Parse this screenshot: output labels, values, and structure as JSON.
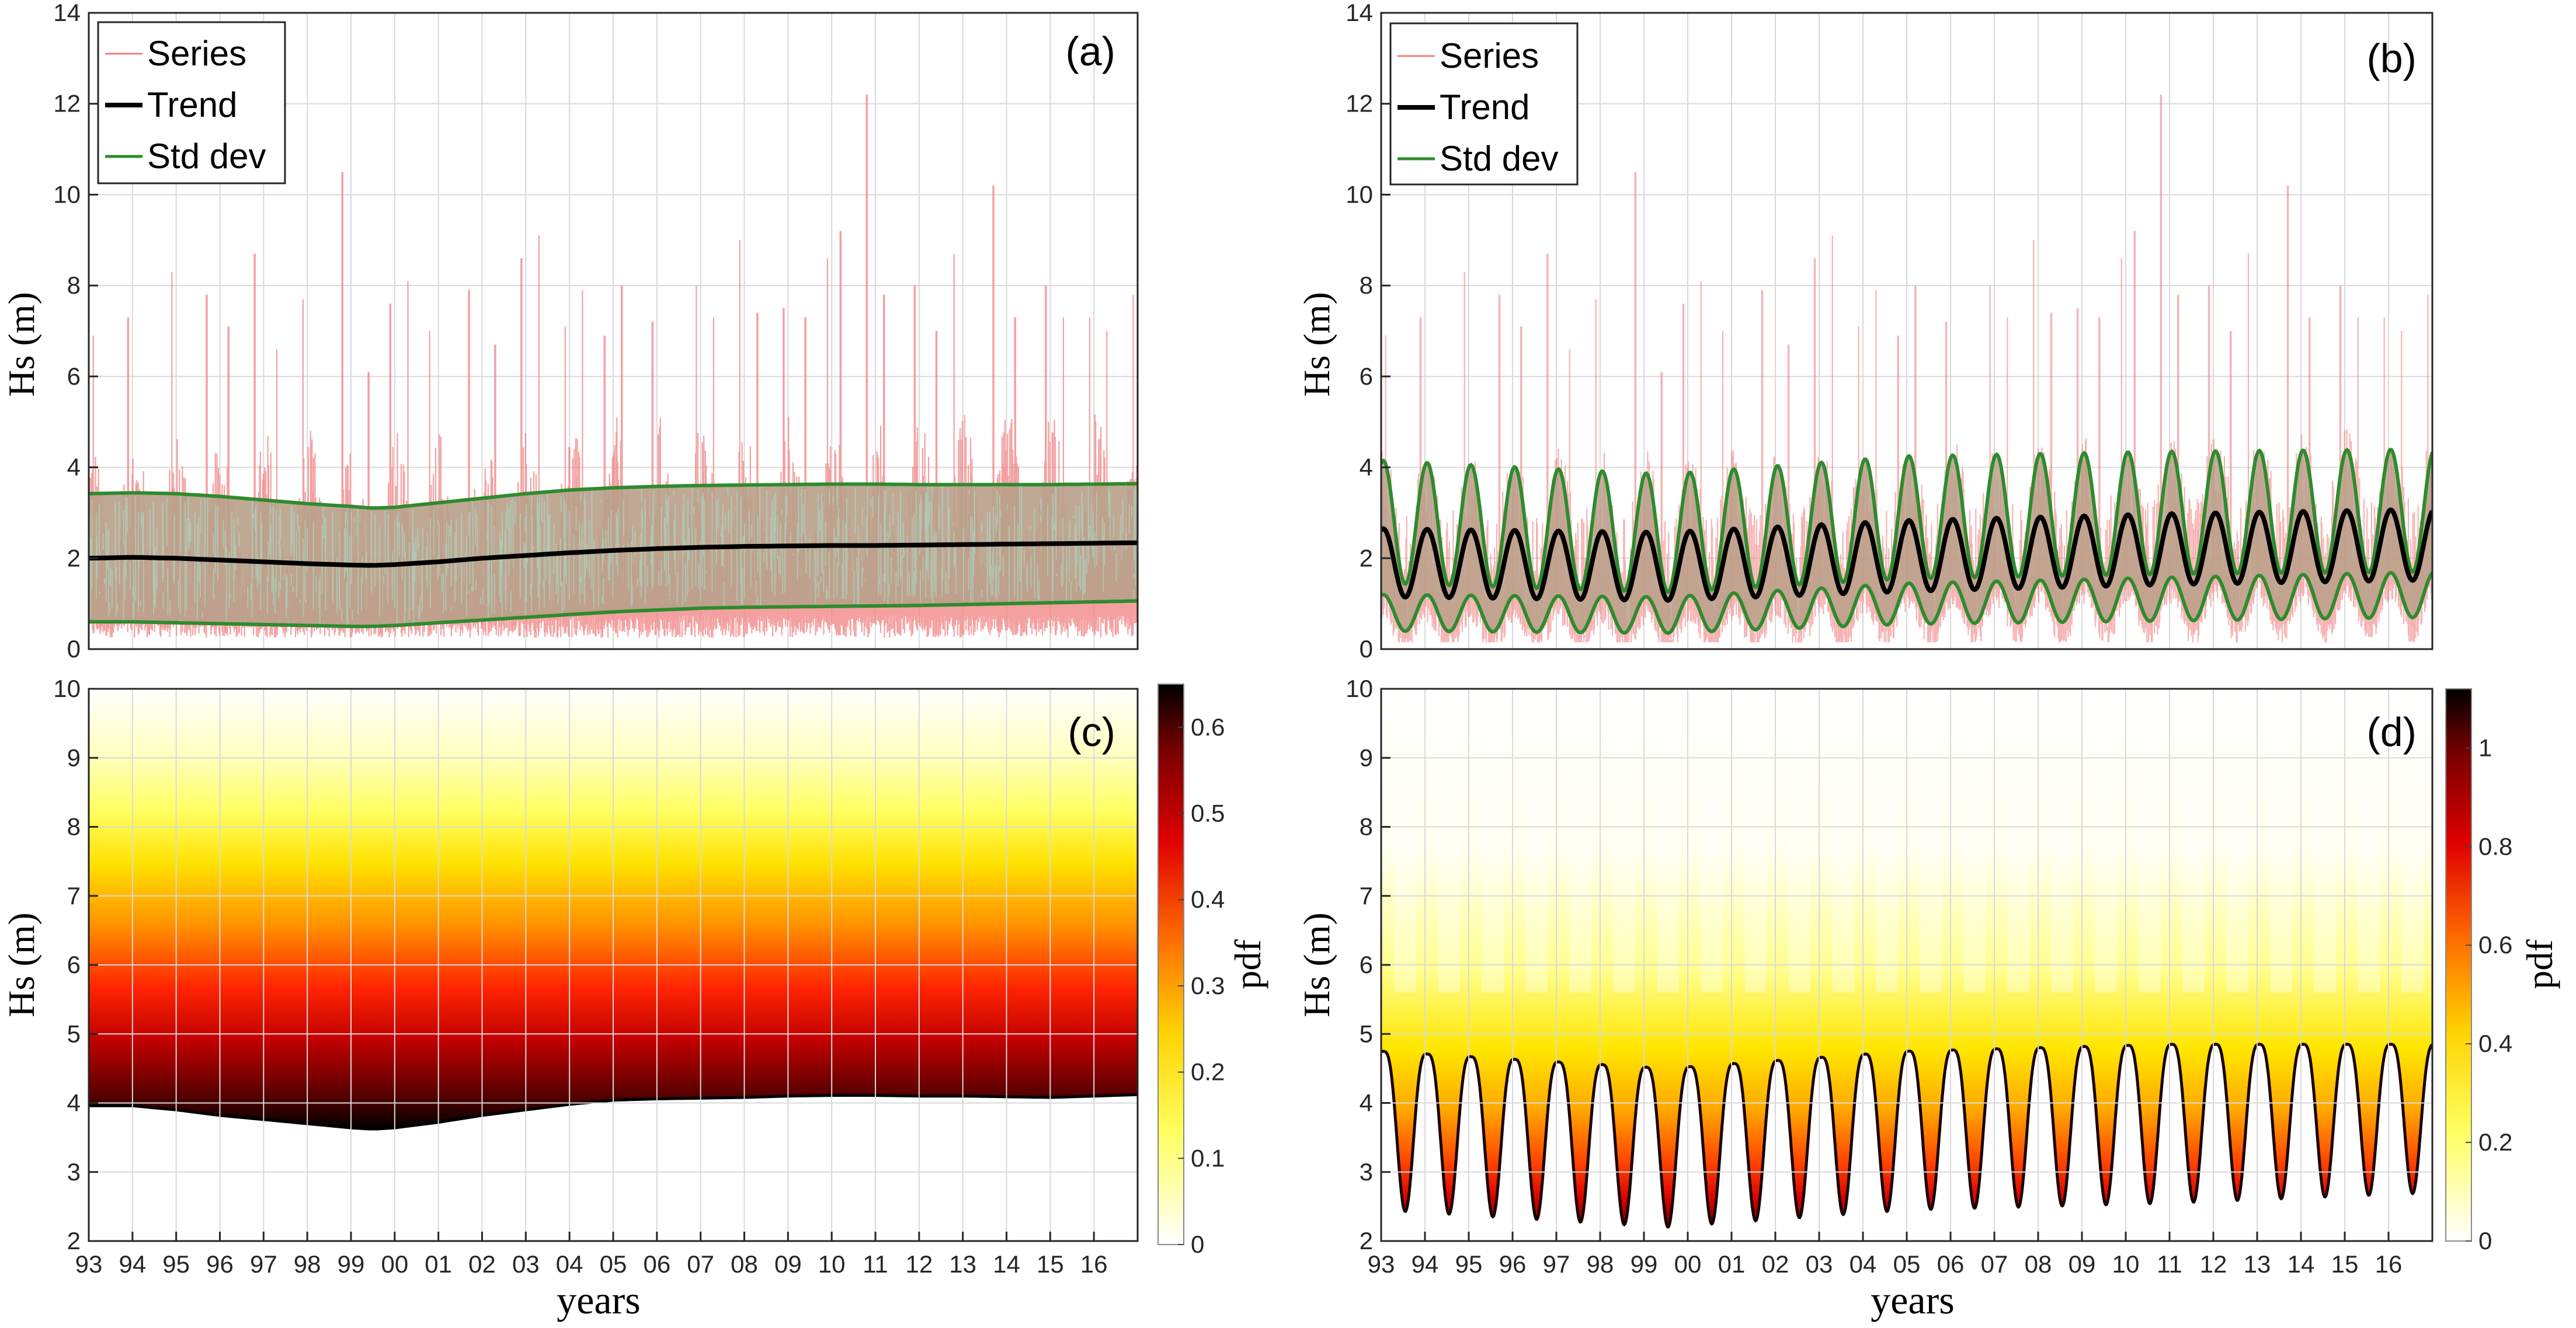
{
  "chart_data": [
    {
      "panel": "(a)",
      "type": "line",
      "ylabel": "Hs (m)",
      "ylim": [
        0,
        14
      ],
      "yticks": [
        "0",
        "2",
        "4",
        "6",
        "8",
        "10",
        "12",
        "14"
      ],
      "xlim": [
        1993,
        2017
      ],
      "grid": true,
      "legend": {
        "position": "top-left",
        "entries": [
          "Series",
          "Trend",
          "Std dev"
        ]
      },
      "series": [
        {
          "name": "Trend",
          "color": "#000000",
          "x": [
            1993,
            1994,
            1995,
            1996,
            1997,
            1998,
            1999,
            1999.5,
            2000,
            2001,
            2002,
            2003,
            2004,
            2005,
            2006,
            2007,
            2008,
            2009,
            2010,
            2011,
            2012,
            2013,
            2014,
            2015,
            2016,
            2017
          ],
          "values": [
            2.0,
            2.02,
            2.0,
            1.96,
            1.92,
            1.88,
            1.85,
            1.84,
            1.86,
            1.92,
            2.0,
            2.06,
            2.12,
            2.17,
            2.21,
            2.24,
            2.26,
            2.27,
            2.28,
            2.28,
            2.29,
            2.3,
            2.31,
            2.32,
            2.33,
            2.34
          ]
        },
        {
          "name": "Std dev upper",
          "color": "#2e8b2e",
          "x": [
            1993,
            1994,
            1995,
            1996,
            1997,
            1998,
            1999,
            1999.5,
            2000,
            2001,
            2002,
            2003,
            2004,
            2005,
            2006,
            2007,
            2008,
            2009,
            2010,
            2011,
            2012,
            2013,
            2014,
            2015,
            2016,
            2017
          ],
          "values": [
            3.42,
            3.44,
            3.42,
            3.36,
            3.28,
            3.2,
            3.14,
            3.1,
            3.12,
            3.22,
            3.32,
            3.42,
            3.5,
            3.55,
            3.58,
            3.6,
            3.61,
            3.62,
            3.63,
            3.63,
            3.62,
            3.62,
            3.62,
            3.62,
            3.63,
            3.64
          ]
        },
        {
          "name": "Std dev lower",
          "color": "#2e8b2e",
          "x": [
            1993,
            1994,
            1995,
            1996,
            1997,
            1998,
            1999,
            1999.5,
            2000,
            2001,
            2002,
            2003,
            2004,
            2005,
            2006,
            2007,
            2008,
            2009,
            2010,
            2011,
            2012,
            2013,
            2014,
            2015,
            2016,
            2017
          ],
          "values": [
            0.6,
            0.6,
            0.58,
            0.56,
            0.54,
            0.52,
            0.5,
            0.5,
            0.52,
            0.58,
            0.64,
            0.7,
            0.76,
            0.82,
            0.86,
            0.9,
            0.92,
            0.93,
            0.94,
            0.95,
            0.96,
            0.98,
            1.0,
            1.02,
            1.04,
            1.06
          ]
        },
        {
          "name": "Series",
          "color": "#f08080",
          "note": "hourly Hs series, peaks up to ~12.2 m around 2010",
          "peaks": [
            [
              1993.1,
              6.9
            ],
            [
              1993.9,
              7.3
            ],
            [
              1994.9,
              8.3
            ],
            [
              1995.7,
              7.8
            ],
            [
              1996.2,
              7.1
            ],
            [
              1996.8,
              8.7
            ],
            [
              1997.3,
              6.6
            ],
            [
              1997.9,
              7.7
            ],
            [
              1998.8,
              10.5
            ],
            [
              1999.4,
              6.1
            ],
            [
              1999.9,
              7.6
            ],
            [
              2000.3,
              8.1
            ],
            [
              2000.8,
              7.0
            ],
            [
              2001.7,
              7.9
            ],
            [
              2002.3,
              6.7
            ],
            [
              2002.9,
              8.6
            ],
            [
              2003.3,
              9.1
            ],
            [
              2003.9,
              7.1
            ],
            [
              2004.3,
              7.9
            ],
            [
              2004.8,
              6.9
            ],
            [
              2005.2,
              8.0
            ],
            [
              2005.9,
              7.2
            ],
            [
              2006.9,
              8.0
            ],
            [
              2007.3,
              7.3
            ],
            [
              2007.9,
              9.0
            ],
            [
              2008.3,
              7.4
            ],
            [
              2008.9,
              7.5
            ],
            [
              2009.4,
              7.3
            ],
            [
              2009.9,
              8.6
            ],
            [
              2010.2,
              9.2
            ],
            [
              2010.8,
              12.2
            ],
            [
              2011.2,
              7.8
            ],
            [
              2011.9,
              8.0
            ],
            [
              2012.4,
              7.0
            ],
            [
              2012.8,
              8.7
            ],
            [
              2013.7,
              10.2
            ],
            [
              2014.2,
              7.3
            ],
            [
              2014.9,
              8.0
            ],
            [
              2015.3,
              7.3
            ],
            [
              2015.9,
              7.3
            ],
            [
              2016.3,
              7.0
            ],
            [
              2016.9,
              7.8
            ]
          ]
        }
      ]
    },
    {
      "panel": "(b)",
      "type": "line",
      "ylabel": "Hs (m)",
      "ylim": [
        0,
        14
      ],
      "yticks": [
        "0",
        "2",
        "4",
        "6",
        "8",
        "10",
        "12",
        "14"
      ],
      "xlim": [
        1993,
        2017
      ],
      "grid": true,
      "legend": {
        "position": "top-left",
        "entries": [
          "Series",
          "Trend",
          "Std dev"
        ]
      },
      "model": "seasonal: Trend = mean(t) + amp(t)*cos(2*pi*(t - 1993.05)); one peak per year (winter)",
      "series": [
        {
          "name": "Trend",
          "color": "#000000",
          "x": [
            1993,
            1999.5,
            2005,
            2011,
            2017
          ],
          "mean": [
            1.9,
            1.82,
            2.05,
            2.2,
            2.3
          ],
          "amplitude": [
            0.75,
            0.75,
            0.78,
            0.78,
            0.78
          ]
        },
        {
          "name": "Std dev upper",
          "color": "#2e8b2e",
          "x": [
            1993,
            1999.5,
            2005,
            2011,
            2017
          ],
          "mean": [
            2.8,
            2.55,
            2.9,
            3.0,
            3.05
          ],
          "amplitude": [
            1.35,
            1.3,
            1.35,
            1.35,
            1.35
          ]
        },
        {
          "name": "Std dev lower",
          "color": "#2e8b2e",
          "x": [
            1993,
            1999.5,
            2005,
            2011,
            2017
          ],
          "mean": [
            0.8,
            0.75,
            1.0,
            1.1,
            1.2
          ],
          "amplitude": [
            0.4,
            0.4,
            0.45,
            0.48,
            0.5
          ]
        },
        {
          "name": "Series",
          "color": "#f08080",
          "note": "same hourly Hs series as panel (a)"
        }
      ]
    },
    {
      "panel": "(c)",
      "type": "heatmap",
      "ylabel": "Hs (m)",
      "xlabel": "years",
      "ylim": [
        2,
        10
      ],
      "yticks": [
        "2",
        "3",
        "4",
        "5",
        "6",
        "7",
        "8",
        "9",
        "10"
      ],
      "xlim": [
        1993,
        2017
      ],
      "xticks": [
        "93",
        "94",
        "95",
        "96",
        "97",
        "98",
        "99",
        "00",
        "01",
        "02",
        "03",
        "04",
        "05",
        "06",
        "07",
        "08",
        "09",
        "10",
        "11",
        "12",
        "13",
        "14",
        "15",
        "16"
      ],
      "colorbar": {
        "label": "pdf",
        "range": [
          0,
          0.65
        ],
        "ticks": [
          "0",
          "0.1",
          "0.2",
          "0.3",
          "0.4",
          "0.5",
          "0.6"
        ],
        "colormap": "hot (reversed)"
      },
      "lower_edge_Hs": {
        "x": [
          1993,
          1994,
          1995,
          1996,
          1997,
          1998,
          1999,
          1999.5,
          2000,
          2001,
          2002,
          2003,
          2004,
          2005,
          2006,
          2007,
          2008,
          2009,
          2010,
          2011,
          2012,
          2013,
          2014,
          2015,
          2016,
          2017
        ],
        "values": [
          3.96,
          3.96,
          3.9,
          3.82,
          3.76,
          3.7,
          3.64,
          3.62,
          3.64,
          3.72,
          3.82,
          3.9,
          3.98,
          4.04,
          4.06,
          4.07,
          4.08,
          4.1,
          4.11,
          4.11,
          4.1,
          4.1,
          4.09,
          4.08,
          4.1,
          4.12
        ]
      }
    },
    {
      "panel": "(d)",
      "type": "heatmap",
      "ylabel": "Hs (m)",
      "xlabel": "years",
      "ylim": [
        2,
        10
      ],
      "yticks": [
        "2",
        "3",
        "4",
        "5",
        "6",
        "7",
        "8",
        "9",
        "10"
      ],
      "xlim": [
        1993,
        2017
      ],
      "xticks": [
        "93",
        "94",
        "95",
        "96",
        "97",
        "98",
        "99",
        "00",
        "01",
        "02",
        "03",
        "04",
        "05",
        "06",
        "07",
        "08",
        "09",
        "10",
        "11",
        "12",
        "13",
        "14",
        "15",
        "16"
      ],
      "colorbar": {
        "label": "pdf",
        "range": [
          0,
          1.12
        ],
        "ticks": [
          "0",
          "0.2",
          "0.4",
          "0.6",
          "0.8",
          "1"
        ],
        "colormap": "hot (reversed)"
      },
      "seasonal_edge_Hs": {
        "x": [
          1993,
          1999.5,
          2005,
          2011,
          2017
        ],
        "peak": [
          4.75,
          4.5,
          4.75,
          4.85,
          4.85
        ],
        "trough": [
          2.45,
          2.2,
          2.45,
          2.55,
          2.7
        ]
      }
    }
  ]
}
